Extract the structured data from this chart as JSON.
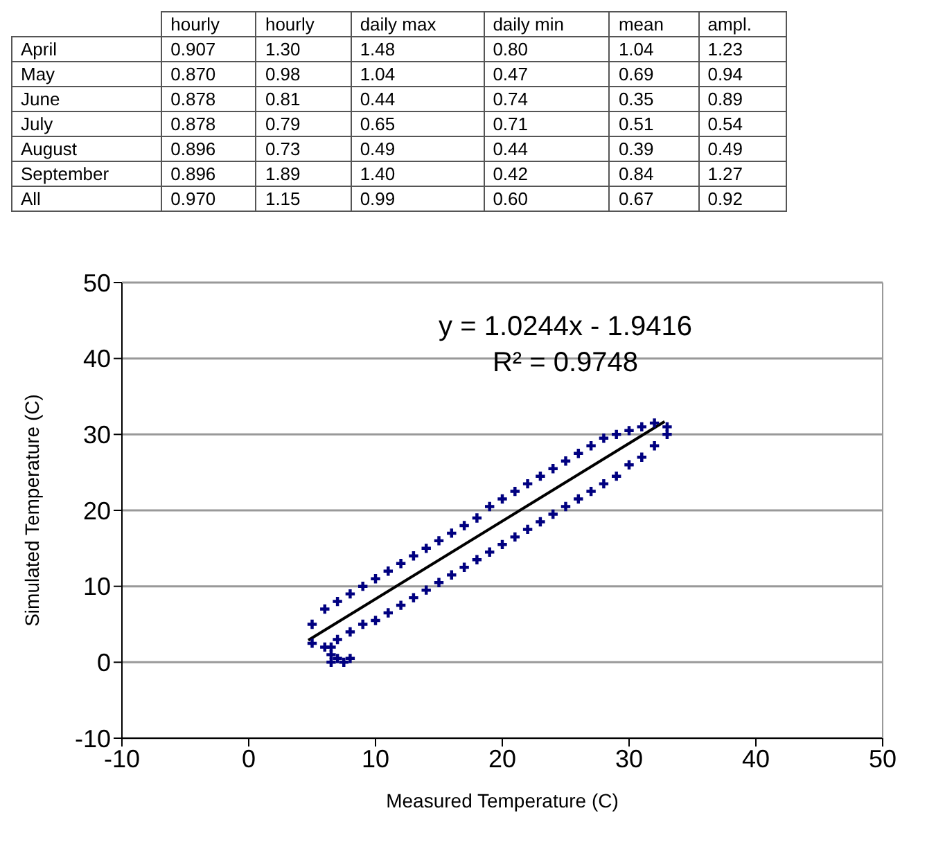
{
  "chart_data": [
    {
      "type": "other",
      "categories": [
        "hourly",
        "hourly",
        "daily max",
        "daily min",
        "mean",
        "ampl."
      ],
      "y_categories": [
        "April",
        "May",
        "June",
        "July",
        "August",
        "September",
        "All"
      ],
      "cell_labels": [
        [
          "0.907",
          "1.30",
          "1.48",
          "0.80",
          "1.04",
          "1.23"
        ],
        [
          "0.870",
          "0.98",
          "1.04",
          "0.47",
          "0.69",
          "0.94"
        ],
        [
          "0.878",
          "0.81",
          "0.44",
          "0.74",
          "0.35",
          "0.89"
        ],
        [
          "0.878",
          "0.79",
          "0.65",
          "0.71",
          "0.51",
          "0.54"
        ],
        [
          "0.896",
          "0.73",
          "0.49",
          "0.44",
          "0.39",
          "0.49"
        ],
        [
          "0.896",
          "1.89",
          "1.40",
          "0.42",
          "0.84",
          "1.27"
        ],
        [
          "0.970",
          "1.15",
          "0.99",
          "0.60",
          "0.67",
          "0.92"
        ]
      ]
    },
    {
      "type": "scatter",
      "xlabel": "Measured Temperature (C)",
      "ylabel": "Simulated Temperature (C)",
      "annotations": [
        "y = 1.0244x - 1.9416",
        "R² = 0.9748"
      ],
      "xlim": [
        -10,
        50
      ],
      "xticks": [
        -10,
        0,
        10,
        20,
        30,
        40,
        50
      ],
      "ylim": [
        -10,
        50
      ],
      "yticks": [
        -10,
        0,
        10,
        20,
        30,
        40,
        50
      ],
      "grid": "y",
      "series": [
        {
          "type": "scatter",
          "color": "#000080",
          "marker": "cross",
          "x": [
            5,
            6,
            7,
            8,
            9,
            10,
            11,
            12,
            13,
            14,
            15,
            16,
            17,
            18,
            19,
            20,
            21,
            22,
            23,
            24,
            25,
            26,
            27,
            28,
            29,
            30,
            31,
            32,
            33,
            5,
            6,
            7,
            8,
            9,
            10,
            11,
            12,
            13,
            14,
            15,
            16,
            17,
            18,
            19,
            20,
            21,
            22,
            23,
            24,
            25,
            26,
            27,
            28,
            29,
            30,
            31,
            32,
            33,
            6.5,
            6.5,
            7,
            7.5,
            8,
            6.5
          ],
          "values": [
            5,
            7,
            8,
            9,
            10,
            11,
            12,
            13,
            14,
            15,
            16,
            17,
            18,
            19,
            20.5,
            21.5,
            22.5,
            23.5,
            24.5,
            25.5,
            26.5,
            27.5,
            28.5,
            29.5,
            30,
            30.5,
            31,
            31.5,
            31,
            2.5,
            2,
            3,
            4,
            5,
            5.5,
            6.5,
            7.5,
            8.5,
            9.5,
            10.5,
            11.5,
            12.5,
            13.5,
            14.5,
            15.5,
            16.5,
            17.5,
            18.5,
            19.5,
            20.5,
            21.5,
            22.5,
            23.5,
            24.5,
            26,
            27,
            28.5,
            30,
            2,
            1,
            0.5,
            0,
            0.5,
            0
          ]
        },
        {
          "type": "line",
          "color": "#000000",
          "marker": "none",
          "line_style": "solid",
          "x": [
            4.7,
            32.8
          ],
          "values": [
            2.9,
            31.7
          ]
        }
      ]
    }
  ]
}
